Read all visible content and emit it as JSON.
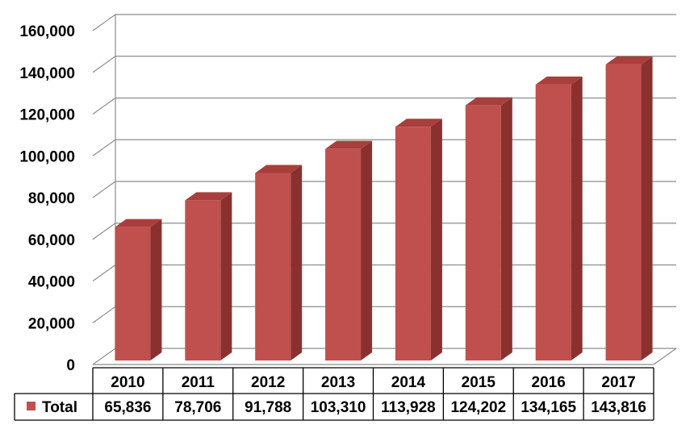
{
  "chart_data": {
    "type": "bar",
    "style": "3d-column-with-data-table",
    "categories": [
      "2010",
      "2011",
      "2012",
      "2013",
      "2014",
      "2015",
      "2016",
      "2017"
    ],
    "series": [
      {
        "name": "Total",
        "values": [
          65836,
          78706,
          91788,
          103310,
          113928,
          124202,
          134165,
          143816
        ]
      }
    ],
    "value_labels": [
      "65,836",
      "78,706",
      "91,788",
      "103,310",
      "113,928",
      "124,202",
      "134,165",
      "143,816"
    ],
    "y_ticks": [
      "0",
      "20,000",
      "40,000",
      "60,000",
      "80,000",
      "100,000",
      "120,000",
      "140,000",
      "160,000"
    ],
    "ylim": [
      0,
      160000
    ],
    "grid": true,
    "legend_position": "data-table-left",
    "colors": {
      "bar_front": "#c0504d",
      "bar_side": "#8a3130",
      "bar_top": "#a83f3c",
      "grid": "#8c8c8c",
      "table_border": "#000000"
    }
  }
}
